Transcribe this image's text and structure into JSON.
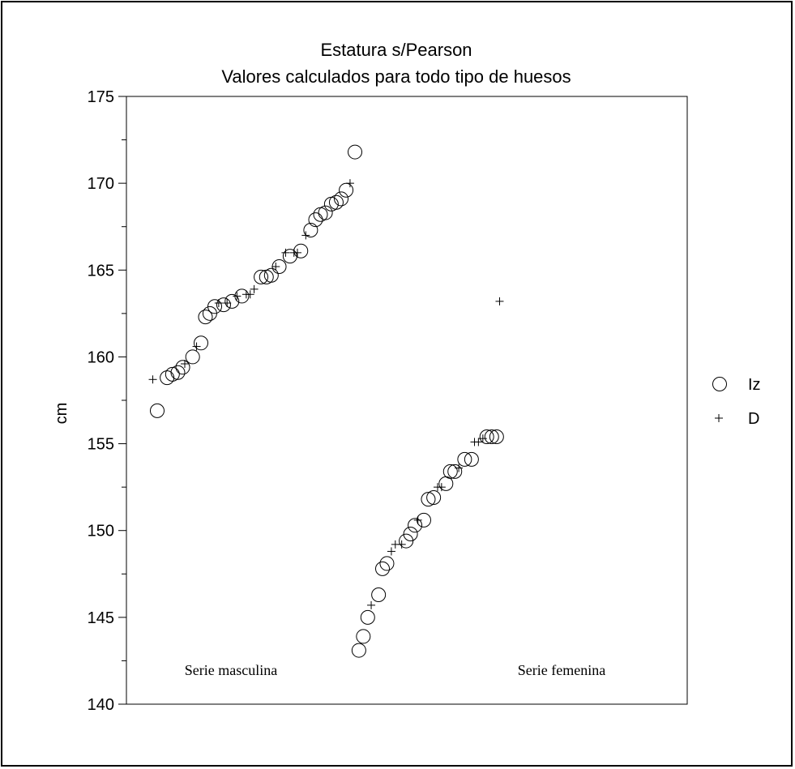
{
  "chart_data": {
    "type": "scatter",
    "title": "Estatura s/Pearson",
    "subtitle": "Valores calculados para todo tipo de huesos",
    "ylabel": "cm",
    "xlabel": "",
    "ylim": [
      140,
      175
    ],
    "yticks": [
      140,
      145,
      150,
      155,
      160,
      165,
      170,
      175
    ],
    "grid": false,
    "legend_position": "right",
    "categories": [
      "Serie masculina",
      "Serie femenina"
    ],
    "series": [
      {
        "name": "Iz",
        "marker": "circle",
        "points": [
          {
            "x": 0.0,
            "y": 156.9
          },
          {
            "x": 0.02,
            "y": 158.8
          },
          {
            "x": 0.031,
            "y": 159.0
          },
          {
            "x": 0.042,
            "y": 159.1
          },
          {
            "x": 0.052,
            "y": 159.4
          },
          {
            "x": 0.072,
            "y": 160.0
          },
          {
            "x": 0.089,
            "y": 160.8
          },
          {
            "x": 0.098,
            "y": 162.3
          },
          {
            "x": 0.107,
            "y": 162.5
          },
          {
            "x": 0.117,
            "y": 162.9
          },
          {
            "x": 0.135,
            "y": 163.0
          },
          {
            "x": 0.152,
            "y": 163.2
          },
          {
            "x": 0.172,
            "y": 163.5
          },
          {
            "x": 0.211,
            "y": 164.6
          },
          {
            "x": 0.222,
            "y": 164.6
          },
          {
            "x": 0.232,
            "y": 164.7
          },
          {
            "x": 0.248,
            "y": 165.2
          },
          {
            "x": 0.27,
            "y": 165.8
          },
          {
            "x": 0.292,
            "y": 166.1
          },
          {
            "x": 0.312,
            "y": 167.3
          },
          {
            "x": 0.322,
            "y": 167.9
          },
          {
            "x": 0.332,
            "y": 168.2
          },
          {
            "x": 0.342,
            "y": 168.3
          },
          {
            "x": 0.354,
            "y": 168.8
          },
          {
            "x": 0.364,
            "y": 168.9
          },
          {
            "x": 0.374,
            "y": 169.1
          },
          {
            "x": 0.384,
            "y": 169.6
          },
          {
            "x": 0.402,
            "y": 171.8
          },
          {
            "x": 0.41,
            "y": 143.1
          },
          {
            "x": 0.419,
            "y": 143.9
          },
          {
            "x": 0.428,
            "y": 145.0
          },
          {
            "x": 0.45,
            "y": 146.3
          },
          {
            "x": 0.458,
            "y": 147.8
          },
          {
            "x": 0.467,
            "y": 148.1
          },
          {
            "x": 0.506,
            "y": 149.4
          },
          {
            "x": 0.515,
            "y": 149.8
          },
          {
            "x": 0.524,
            "y": 150.3
          },
          {
            "x": 0.542,
            "y": 150.6
          },
          {
            "x": 0.551,
            "y": 151.8
          },
          {
            "x": 0.562,
            "y": 151.9
          },
          {
            "x": 0.587,
            "y": 152.7
          },
          {
            "x": 0.596,
            "y": 153.4
          },
          {
            "x": 0.605,
            "y": 153.4
          },
          {
            "x": 0.625,
            "y": 154.1
          },
          {
            "x": 0.639,
            "y": 154.1
          },
          {
            "x": 0.67,
            "y": 155.4
          },
          {
            "x": 0.68,
            "y": 155.4
          },
          {
            "x": 0.69,
            "y": 155.4
          }
        ]
      },
      {
        "name": "D",
        "marker": "plus",
        "points": [
          {
            "x": -0.009,
            "y": 158.7
          },
          {
            "x": 0.056,
            "y": 159.6
          },
          {
            "x": 0.08,
            "y": 160.6
          },
          {
            "x": 0.125,
            "y": 163.1
          },
          {
            "x": 0.142,
            "y": 163.1
          },
          {
            "x": 0.162,
            "y": 163.5
          },
          {
            "x": 0.181,
            "y": 163.6
          },
          {
            "x": 0.189,
            "y": 163.6
          },
          {
            "x": 0.197,
            "y": 163.9
          },
          {
            "x": 0.241,
            "y": 165.2
          },
          {
            "x": 0.261,
            "y": 166.0
          },
          {
            "x": 0.278,
            "y": 166.0
          },
          {
            "x": 0.285,
            "y": 166.0
          },
          {
            "x": 0.302,
            "y": 167.0
          },
          {
            "x": 0.392,
            "y": 170.0
          },
          {
            "x": 0.435,
            "y": 145.7
          },
          {
            "x": 0.476,
            "y": 148.8
          },
          {
            "x": 0.484,
            "y": 149.2
          },
          {
            "x": 0.497,
            "y": 149.2
          },
          {
            "x": 0.53,
            "y": 150.6
          },
          {
            "x": 0.57,
            "y": 152.5
          },
          {
            "x": 0.578,
            "y": 152.5
          },
          {
            "x": 0.613,
            "y": 153.6
          },
          {
            "x": 0.645,
            "y": 155.1
          },
          {
            "x": 0.653,
            "y": 155.1
          },
          {
            "x": 0.662,
            "y": 155.3
          },
          {
            "x": 0.696,
            "y": 163.2
          }
        ]
      }
    ]
  }
}
